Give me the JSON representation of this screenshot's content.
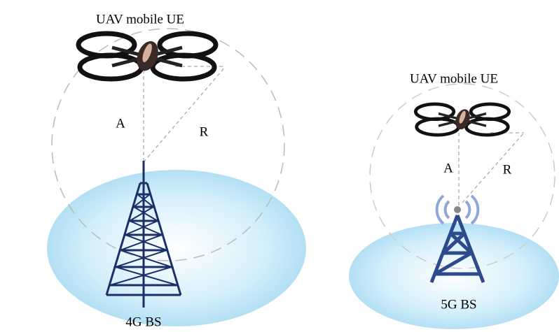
{
  "left": {
    "uav_label": "UAV mobile UE",
    "altitude_label": "A",
    "radius_label": "R",
    "bs_label": "4G BS"
  },
  "right": {
    "uav_label": "UAV mobile UE",
    "altitude_label": "A",
    "radius_label": "R",
    "bs_label": "5G BS"
  }
}
